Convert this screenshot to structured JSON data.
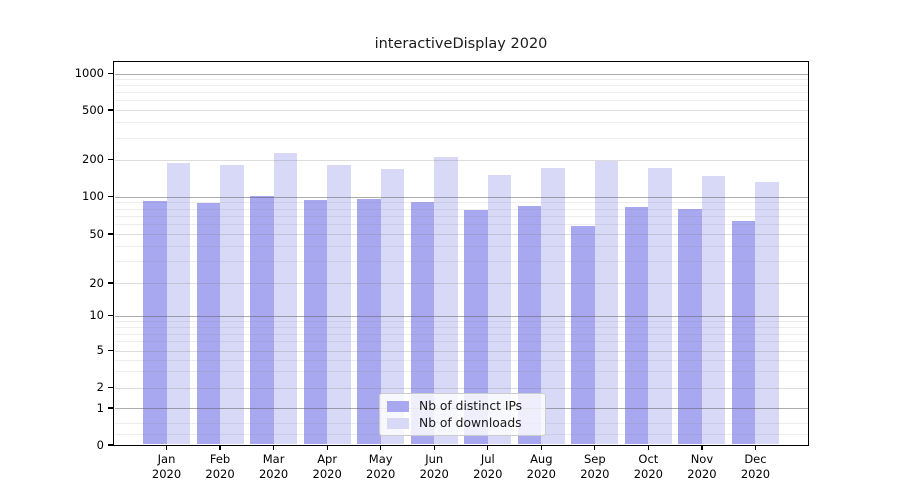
{
  "title": "interactiveDisplay 2020",
  "chart_data": {
    "type": "bar",
    "title": "interactiveDisplay 2020",
    "categories": [
      "Jan 2020",
      "Feb 2020",
      "Mar 2020",
      "Apr 2020",
      "May 2020",
      "Jun 2020",
      "Jul 2020",
      "Aug 2020",
      "Sep 2020",
      "Oct 2020",
      "Nov 2020",
      "Dec 2020"
    ],
    "series": [
      {
        "name": "Nb of distinct IPs",
        "color": "#a8a8f0",
        "values": [
          92,
          89,
          101,
          93,
          96,
          91,
          78,
          84,
          58,
          83,
          80,
          63
        ]
      },
      {
        "name": "Nb of downloads",
        "color": "#d8d8f7",
        "values": [
          187,
          181,
          225,
          182,
          167,
          210,
          150,
          172,
          193,
          171,
          147,
          132
        ]
      }
    ],
    "xlabel": "",
    "ylabel": "",
    "yscale": "symlog",
    "y_ticks": [
      0,
      1,
      2,
      5,
      10,
      20,
      50,
      100,
      200,
      500,
      1000
    ],
    "ylim": [
      0,
      1300
    ],
    "grid": "on",
    "legend_position": "lower center"
  },
  "legend": {
    "items": [
      {
        "label": "Nb of distinct IPs",
        "color": "#a8a8f0"
      },
      {
        "label": "Nb of downloads",
        "color": "#d8d8f7"
      }
    ]
  }
}
